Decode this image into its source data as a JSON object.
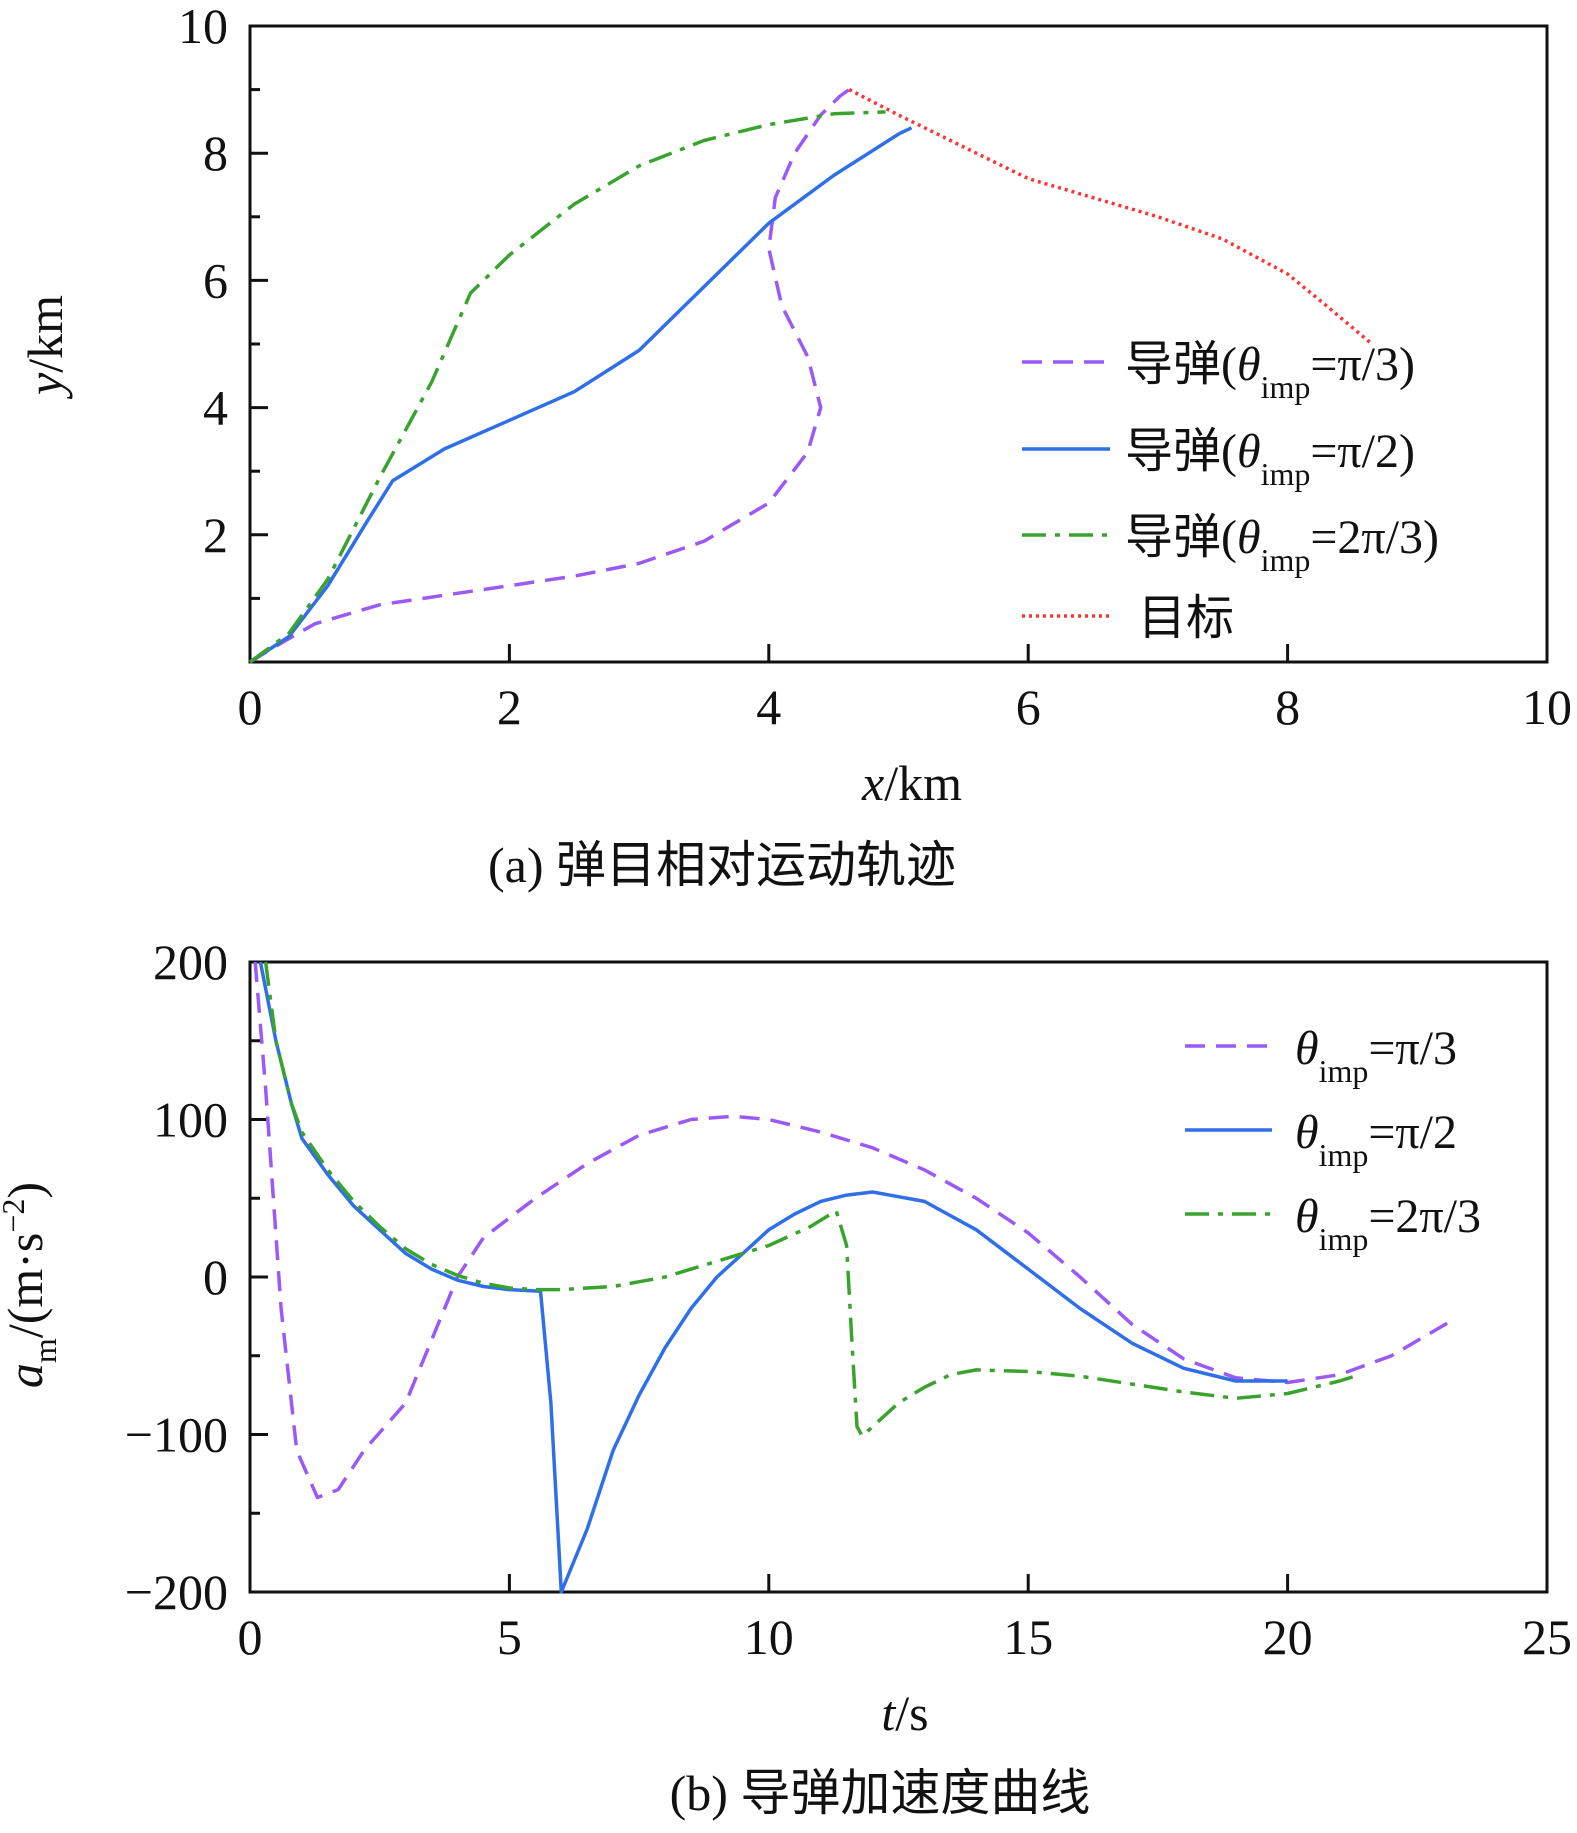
{
  "colors": {
    "pi3": "#9b59f5",
    "pi2": "#2f6fe8",
    "twopi3": "#3aa32e",
    "target": "#ff3333",
    "axis": "#111111"
  },
  "chart_data": [
    {
      "type": "line",
      "title": "",
      "caption": "(a) 弹目相对运动轨迹",
      "xlabel_var": "x",
      "xlabel_unit": "/km",
      "ylabel_var": "y",
      "ylabel_unit": "/km",
      "xlim": [
        0,
        10
      ],
      "ylim": [
        0,
        10
      ],
      "xticks": [
        "0",
        "2",
        "4",
        "6",
        "8",
        "10"
      ],
      "yticks": [
        "2",
        "4",
        "6",
        "8",
        "10"
      ],
      "legend_position": "right-middle",
      "series": [
        {
          "name": "导弹(θimp=π/3)",
          "legend_prefix": "导弹(",
          "legend_theta": "θ",
          "legend_sub": "imp",
          "legend_suffix": "=π/3)",
          "color_key": "pi3",
          "style": "dashed",
          "points": [
            [
              0,
              0
            ],
            [
              0.2,
              0.25
            ],
            [
              0.5,
              0.6
            ],
            [
              1.0,
              0.9
            ],
            [
              1.5,
              1.05
            ],
            [
              2.0,
              1.2
            ],
            [
              2.5,
              1.35
            ],
            [
              3.0,
              1.55
            ],
            [
              3.5,
              1.9
            ],
            [
              4.0,
              2.5
            ],
            [
              4.3,
              3.3
            ],
            [
              4.4,
              4.0
            ],
            [
              4.3,
              4.8
            ],
            [
              4.1,
              5.6
            ],
            [
              4.0,
              6.5
            ],
            [
              4.05,
              7.3
            ],
            [
              4.2,
              8.0
            ],
            [
              4.4,
              8.6
            ],
            [
              4.55,
              8.9
            ],
            [
              4.62,
              9.0
            ]
          ]
        },
        {
          "name": "导弹(θimp=π/2)",
          "legend_prefix": "导弹(",
          "legend_theta": "θ",
          "legend_sub": "imp",
          "legend_suffix": "=π/2)",
          "color_key": "pi2",
          "style": "solid",
          "points": [
            [
              0,
              0
            ],
            [
              0.3,
              0.4
            ],
            [
              0.6,
              1.2
            ],
            [
              0.9,
              2.2
            ],
            [
              1.1,
              2.85
            ],
            [
              1.5,
              3.35
            ],
            [
              2.0,
              3.8
            ],
            [
              2.5,
              4.25
            ],
            [
              3.0,
              4.9
            ],
            [
              3.5,
              5.9
            ],
            [
              4.0,
              6.9
            ],
            [
              4.5,
              7.65
            ],
            [
              5.0,
              8.3
            ],
            [
              5.1,
              8.4
            ]
          ]
        },
        {
          "name": "导弹(θimp=2π/3)",
          "legend_prefix": "导弹(",
          "legend_theta": "θ",
          "legend_sub": "imp",
          "legend_suffix": "=2π/3)",
          "color_key": "twopi3",
          "style": "dashdot",
          "points": [
            [
              0,
              0
            ],
            [
              0.3,
              0.45
            ],
            [
              0.6,
              1.3
            ],
            [
              1.0,
              2.9
            ],
            [
              1.4,
              4.4
            ],
            [
              1.7,
              5.8
            ],
            [
              2.0,
              6.4
            ],
            [
              2.5,
              7.2
            ],
            [
              3.0,
              7.8
            ],
            [
              3.5,
              8.2
            ],
            [
              4.0,
              8.45
            ],
            [
              4.5,
              8.62
            ],
            [
              4.9,
              8.65
            ]
          ]
        },
        {
          "name": "目标",
          "legend_prefix": "目标",
          "legend_theta": "",
          "legend_sub": "",
          "legend_suffix": "",
          "color_key": "target",
          "style": "dotted",
          "points": [
            [
              4.62,
              9.0
            ],
            [
              5.0,
              8.6
            ],
            [
              5.5,
              8.1
            ],
            [
              6.0,
              7.6
            ],
            [
              6.5,
              7.3
            ],
            [
              7.0,
              7.0
            ],
            [
              7.5,
              6.65
            ],
            [
              8.0,
              6.1
            ],
            [
              8.3,
              5.6
            ],
            [
              8.65,
              5.0
            ]
          ]
        }
      ]
    },
    {
      "type": "line",
      "title": "",
      "caption": "(b) 导弹加速度曲线",
      "xlabel_var": "t",
      "xlabel_unit": "/s",
      "ylabel_var": "a",
      "ylabel_sub": "m",
      "ylabel_unit": "/(m·s",
      "ylabel_sup": "−2",
      "ylabel_close": ")",
      "xlim": [
        0,
        25
      ],
      "ylim": [
        -200,
        200
      ],
      "xticks": [
        "0",
        "5",
        "10",
        "15",
        "20",
        "25"
      ],
      "yticks": [
        "−200",
        "−100",
        "0",
        "100",
        "200"
      ],
      "legend_position": "top-right",
      "series": [
        {
          "name": "θimp=π/3",
          "legend_prefix": "",
          "legend_theta": "θ",
          "legend_sub": "imp",
          "legend_suffix": "=π/3",
          "color_key": "pi3",
          "style": "dashed",
          "points": [
            [
              0.1,
              200
            ],
            [
              0.3,
              120
            ],
            [
              0.6,
              -20
            ],
            [
              0.9,
              -110
            ],
            [
              1.3,
              -140
            ],
            [
              1.7,
              -135
            ],
            [
              2.2,
              -110
            ],
            [
              3.0,
              -80
            ],
            [
              3.5,
              -40
            ],
            [
              4.0,
              0
            ],
            [
              4.5,
              25
            ],
            [
              5.5,
              50
            ],
            [
              6.5,
              72
            ],
            [
              7.5,
              90
            ],
            [
              8.5,
              100
            ],
            [
              9.3,
              102
            ],
            [
              10.0,
              100
            ],
            [
              11.0,
              92
            ],
            [
              12.0,
              82
            ],
            [
              13.0,
              68
            ],
            [
              14.0,
              50
            ],
            [
              15.0,
              28
            ],
            [
              16.0,
              0
            ],
            [
              17.0,
              -30
            ],
            [
              18.0,
              -52
            ],
            [
              19.0,
              -64
            ],
            [
              20.0,
              -67
            ],
            [
              21.0,
              -62
            ],
            [
              22.0,
              -50
            ],
            [
              23.2,
              -27
            ]
          ]
        },
        {
          "name": "θimp=π/2",
          "legend_prefix": "",
          "legend_theta": "θ",
          "legend_sub": "imp",
          "legend_suffix": "=π/2",
          "color_key": "pi2",
          "style": "solid",
          "points": [
            [
              0.2,
              200
            ],
            [
              0.5,
              150
            ],
            [
              0.8,
              110
            ],
            [
              1.0,
              88
            ],
            [
              1.5,
              65
            ],
            [
              2.0,
              45
            ],
            [
              2.5,
              30
            ],
            [
              3.0,
              15
            ],
            [
              3.5,
              5
            ],
            [
              4.0,
              -2
            ],
            [
              4.5,
              -6
            ],
            [
              5.0,
              -8
            ],
            [
              5.6,
              -9
            ],
            [
              5.8,
              -80
            ],
            [
              6.0,
              -200
            ],
            [
              6.5,
              -160
            ],
            [
              7.0,
              -110
            ],
            [
              7.5,
              -75
            ],
            [
              8.0,
              -45
            ],
            [
              8.5,
              -20
            ],
            [
              9.0,
              0
            ],
            [
              9.5,
              15
            ],
            [
              10.0,
              30
            ],
            [
              10.5,
              40
            ],
            [
              11.0,
              48
            ],
            [
              11.5,
              52
            ],
            [
              12.0,
              54
            ],
            [
              13.0,
              48
            ],
            [
              14.0,
              30
            ],
            [
              15.0,
              5
            ],
            [
              16.0,
              -20
            ],
            [
              17.0,
              -42
            ],
            [
              18.0,
              -58
            ],
            [
              19.0,
              -66
            ],
            [
              20.0,
              -66
            ]
          ]
        },
        {
          "name": "θimp=2π/3",
          "legend_prefix": "",
          "legend_theta": "θ",
          "legend_sub": "imp",
          "legend_suffix": "=2π/3",
          "color_key": "twopi3",
          "style": "dashdot",
          "points": [
            [
              0.3,
              200
            ],
            [
              0.5,
              150
            ],
            [
              0.8,
              110
            ],
            [
              1.0,
              92
            ],
            [
              1.5,
              68
            ],
            [
              2.0,
              48
            ],
            [
              2.5,
              32
            ],
            [
              3.0,
              18
            ],
            [
              3.5,
              8
            ],
            [
              4.0,
              1
            ],
            [
              4.5,
              -4
            ],
            [
              5.0,
              -7
            ],
            [
              5.5,
              -8
            ],
            [
              6.0,
              -8
            ],
            [
              7.0,
              -6
            ],
            [
              8.0,
              0
            ],
            [
              9.0,
              10
            ],
            [
              10.0,
              20
            ],
            [
              10.8,
              32
            ],
            [
              11.3,
              42
            ],
            [
              11.5,
              20
            ],
            [
              11.6,
              -40
            ],
            [
              11.7,
              -95
            ],
            [
              11.8,
              -101
            ],
            [
              12.0,
              -95
            ],
            [
              12.5,
              -80
            ],
            [
              13.0,
              -70
            ],
            [
              13.5,
              -62
            ],
            [
              14.0,
              -59
            ],
            [
              15.0,
              -60
            ],
            [
              16.0,
              -63
            ],
            [
              17.0,
              -68
            ],
            [
              18.0,
              -73
            ],
            [
              19.0,
              -77
            ],
            [
              20.0,
              -74
            ],
            [
              21.0,
              -66
            ],
            [
              21.3,
              -63
            ]
          ]
        }
      ]
    }
  ]
}
